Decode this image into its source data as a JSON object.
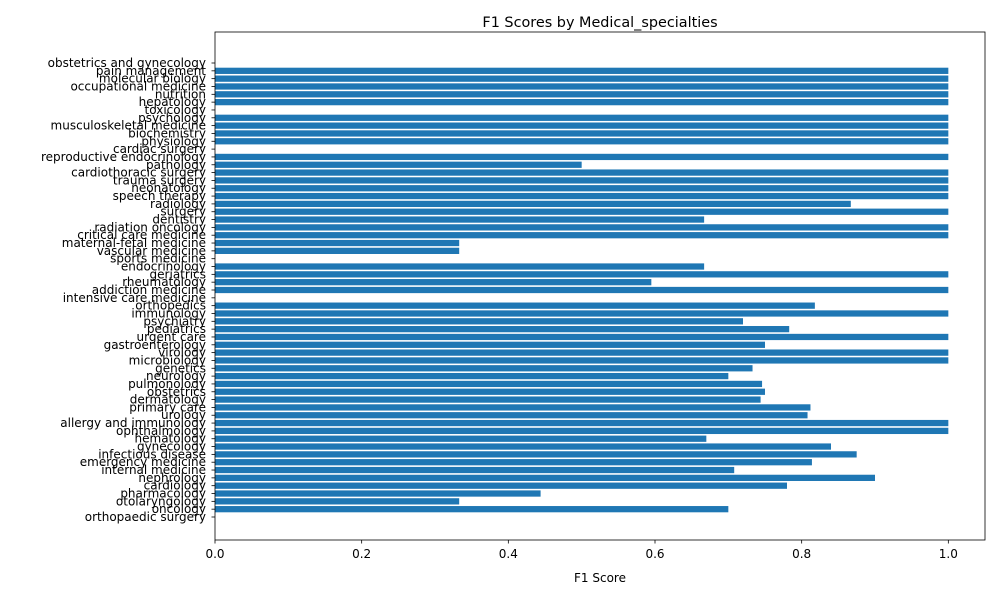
{
  "chart_data": {
    "type": "bar",
    "orientation": "horizontal",
    "title": "F1 Scores by Medical_specialties",
    "xlabel": "F1 Score",
    "ylabel": "",
    "xlim": [
      0.0,
      1.05
    ],
    "x_ticks": [
      "0.0",
      "0.2",
      "0.4",
      "0.6",
      "0.8",
      "1.0"
    ],
    "grid": false,
    "legend": "none",
    "bar_color": "#1f77b4",
    "categories": [
      "orthopaedic surgery",
      "oncology",
      "otolaryngology",
      "pharmacology",
      "cardiology",
      "nephrology",
      "internal medicine",
      "emergency medicine",
      "infectious disease",
      "gynecology",
      "hematology",
      "ophthalmology",
      "allergy and immunology",
      "urology",
      "primary care",
      "dermatology",
      "obstetrics",
      "pulmonology",
      "neurology",
      "genetics",
      "microbiology",
      "virology",
      "gastroenterology",
      "urgent care",
      "pediatrics",
      "psychiatry",
      "immunology",
      "orthopedics",
      "intensive care medicine",
      "addiction medicine",
      "rheumatology",
      "geriatrics",
      "endocrinology",
      "sports medicine",
      "vascular medicine",
      "maternal-fetal medicine",
      "critical care medicine",
      "radiation oncology",
      "dentistry",
      "surgery",
      "radiology",
      "speech therapy",
      "neonatology",
      "trauma surgery",
      "cardiothoracic surgery",
      "pathology",
      "reproductive endocrinology",
      "cardiac surgery",
      "physiology",
      "biochemistry",
      "musculoskeletal medicine",
      "psychology",
      "toxicology",
      "hepatology",
      "nutrition",
      "occupational medicine",
      "molecular biology",
      "pain management",
      "obstetrics and gynecology"
    ],
    "values": [
      0.0,
      0.7,
      0.333,
      0.444,
      0.78,
      0.9,
      0.708,
      0.814,
      0.875,
      0.84,
      0.67,
      1.0,
      1.0,
      0.808,
      0.812,
      0.744,
      0.75,
      0.746,
      0.7,
      0.733,
      1.0,
      1.0,
      0.75,
      1.0,
      0.783,
      0.72,
      1.0,
      0.818,
      0.0,
      1.0,
      0.595,
      1.0,
      0.667,
      0.0,
      0.333,
      0.333,
      1.0,
      1.0,
      0.667,
      1.0,
      0.867,
      1.0,
      1.0,
      1.0,
      1.0,
      0.5,
      1.0,
      0.0,
      1.0,
      1.0,
      1.0,
      1.0,
      0.0,
      1.0,
      1.0,
      1.0,
      1.0,
      1.0,
      0.0
    ]
  }
}
